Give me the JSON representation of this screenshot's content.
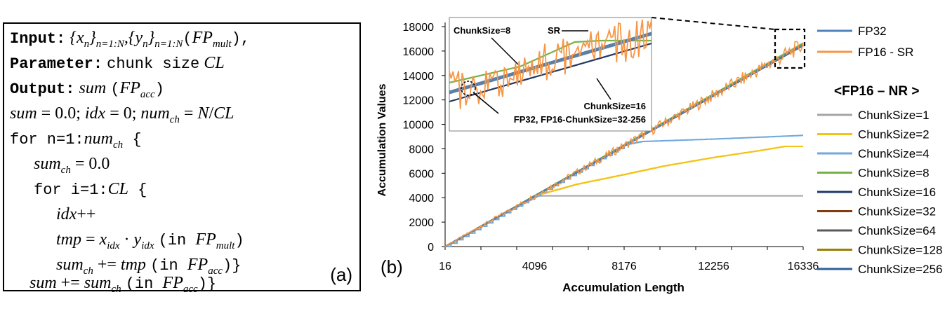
{
  "panel_a": {
    "label": "(a)",
    "lines": [
      {
        "kw": "Input:",
        "math": "{x_n}_{n=1:N}, {y_n}_{n=1:N}",
        "tail": "(FP_mult),"
      },
      {
        "kw": "Parameter:",
        "text": "chunk size",
        "math": "CL"
      },
      {
        "kw": "Output:",
        "math": "sum",
        "tail": "(FP_acc)"
      },
      {
        "math": "sum = 0.0; idx = 0; num_ch = N/CL"
      },
      {
        "text": "for n=1:num_ch {"
      },
      {
        "math": "sum_ch = 0.0"
      },
      {
        "text": "for i=1:CL {"
      },
      {
        "math": "idx++"
      },
      {
        "math": "tmp = x_idx · y_idx",
        "tail": "(in FP_mult)"
      },
      {
        "math": "sum_ch += tmp",
        "tail": "(in FP_acc)}"
      },
      {
        "math": "sum += sum_ch",
        "tail": "(in FP_acc)}"
      }
    ]
  },
  "panel_b_label": "(b)",
  "chart_data": {
    "type": "line",
    "title": "",
    "xlabel": "Accumulation Length",
    "ylabel": "Accumulation Values",
    "x_ticks": [
      "16",
      "4096",
      "8176",
      "12256",
      "16336"
    ],
    "y_ticks": [
      "0",
      "2000",
      "4000",
      "6000",
      "8000",
      "10000",
      "12000",
      "14000",
      "16000",
      "18000"
    ],
    "xlim": [
      16,
      16336
    ],
    "ylim": [
      0,
      18000
    ],
    "series": [
      {
        "name": "FP32",
        "color": "#4f81bd",
        "points": [
          [
            16,
            0
          ],
          [
            16336,
            16500
          ]
        ]
      },
      {
        "name": "FP16 - SR",
        "color": "#f79646",
        "points": [
          [
            16,
            0
          ],
          [
            16336,
            16500
          ]
        ],
        "noise": true
      },
      {
        "name": "ChunkSize=1",
        "color": "#a5a5a5",
        "points": [
          [
            16,
            0
          ],
          [
            2048,
            2050
          ],
          [
            4300,
            4150
          ],
          [
            16336,
            4150
          ]
        ]
      },
      {
        "name": "ChunkSize=2",
        "color": "#f2c314",
        "points": [
          [
            16,
            0
          ],
          [
            4096,
            4150
          ],
          [
            6000,
            5100
          ],
          [
            8176,
            5900
          ],
          [
            10000,
            6600
          ],
          [
            12256,
            7300
          ],
          [
            14500,
            7900
          ],
          [
            15500,
            8200
          ],
          [
            16336,
            8200
          ]
        ]
      },
      {
        "name": "ChunkSize=4",
        "color": "#6fa8dc",
        "points": [
          [
            16,
            0
          ],
          [
            8176,
            8300
          ],
          [
            9000,
            8600
          ],
          [
            12256,
            8800
          ],
          [
            15000,
            9000
          ],
          [
            16336,
            9100
          ]
        ]
      },
      {
        "name": "ChunkSize=8",
        "color": "#77b249",
        "points": [
          [
            16,
            0
          ],
          [
            16336,
            16650
          ]
        ]
      },
      {
        "name": "ChunkSize=16",
        "color": "#1f3864",
        "points": [
          [
            16,
            0
          ],
          [
            16336,
            16450
          ]
        ]
      },
      {
        "name": "ChunkSize=32",
        "color": "#843c0c",
        "points": [
          [
            16,
            0
          ],
          [
            16336,
            16500
          ]
        ]
      },
      {
        "name": "ChunkSize=64",
        "color": "#595959",
        "points": [
          [
            16,
            0
          ],
          [
            16336,
            16500
          ]
        ]
      },
      {
        "name": "ChunkSize=128",
        "color": "#9c7f00",
        "points": [
          [
            16,
            0
          ],
          [
            16336,
            16500
          ]
        ]
      },
      {
        "name": "ChunkSize=256",
        "color": "#2e5f9c",
        "points": [
          [
            16,
            0
          ],
          [
            16336,
            16500
          ]
        ]
      }
    ],
    "legend": {
      "top_entries": [
        "FP32",
        "FP16 - SR"
      ],
      "group_title": "<FP16 – NR >"
    },
    "inset_annotations": [
      "ChunkSize=8",
      "SR",
      "ChunkSize=16",
      "FP32, FP16-ChunkSize=32-256"
    ]
  }
}
